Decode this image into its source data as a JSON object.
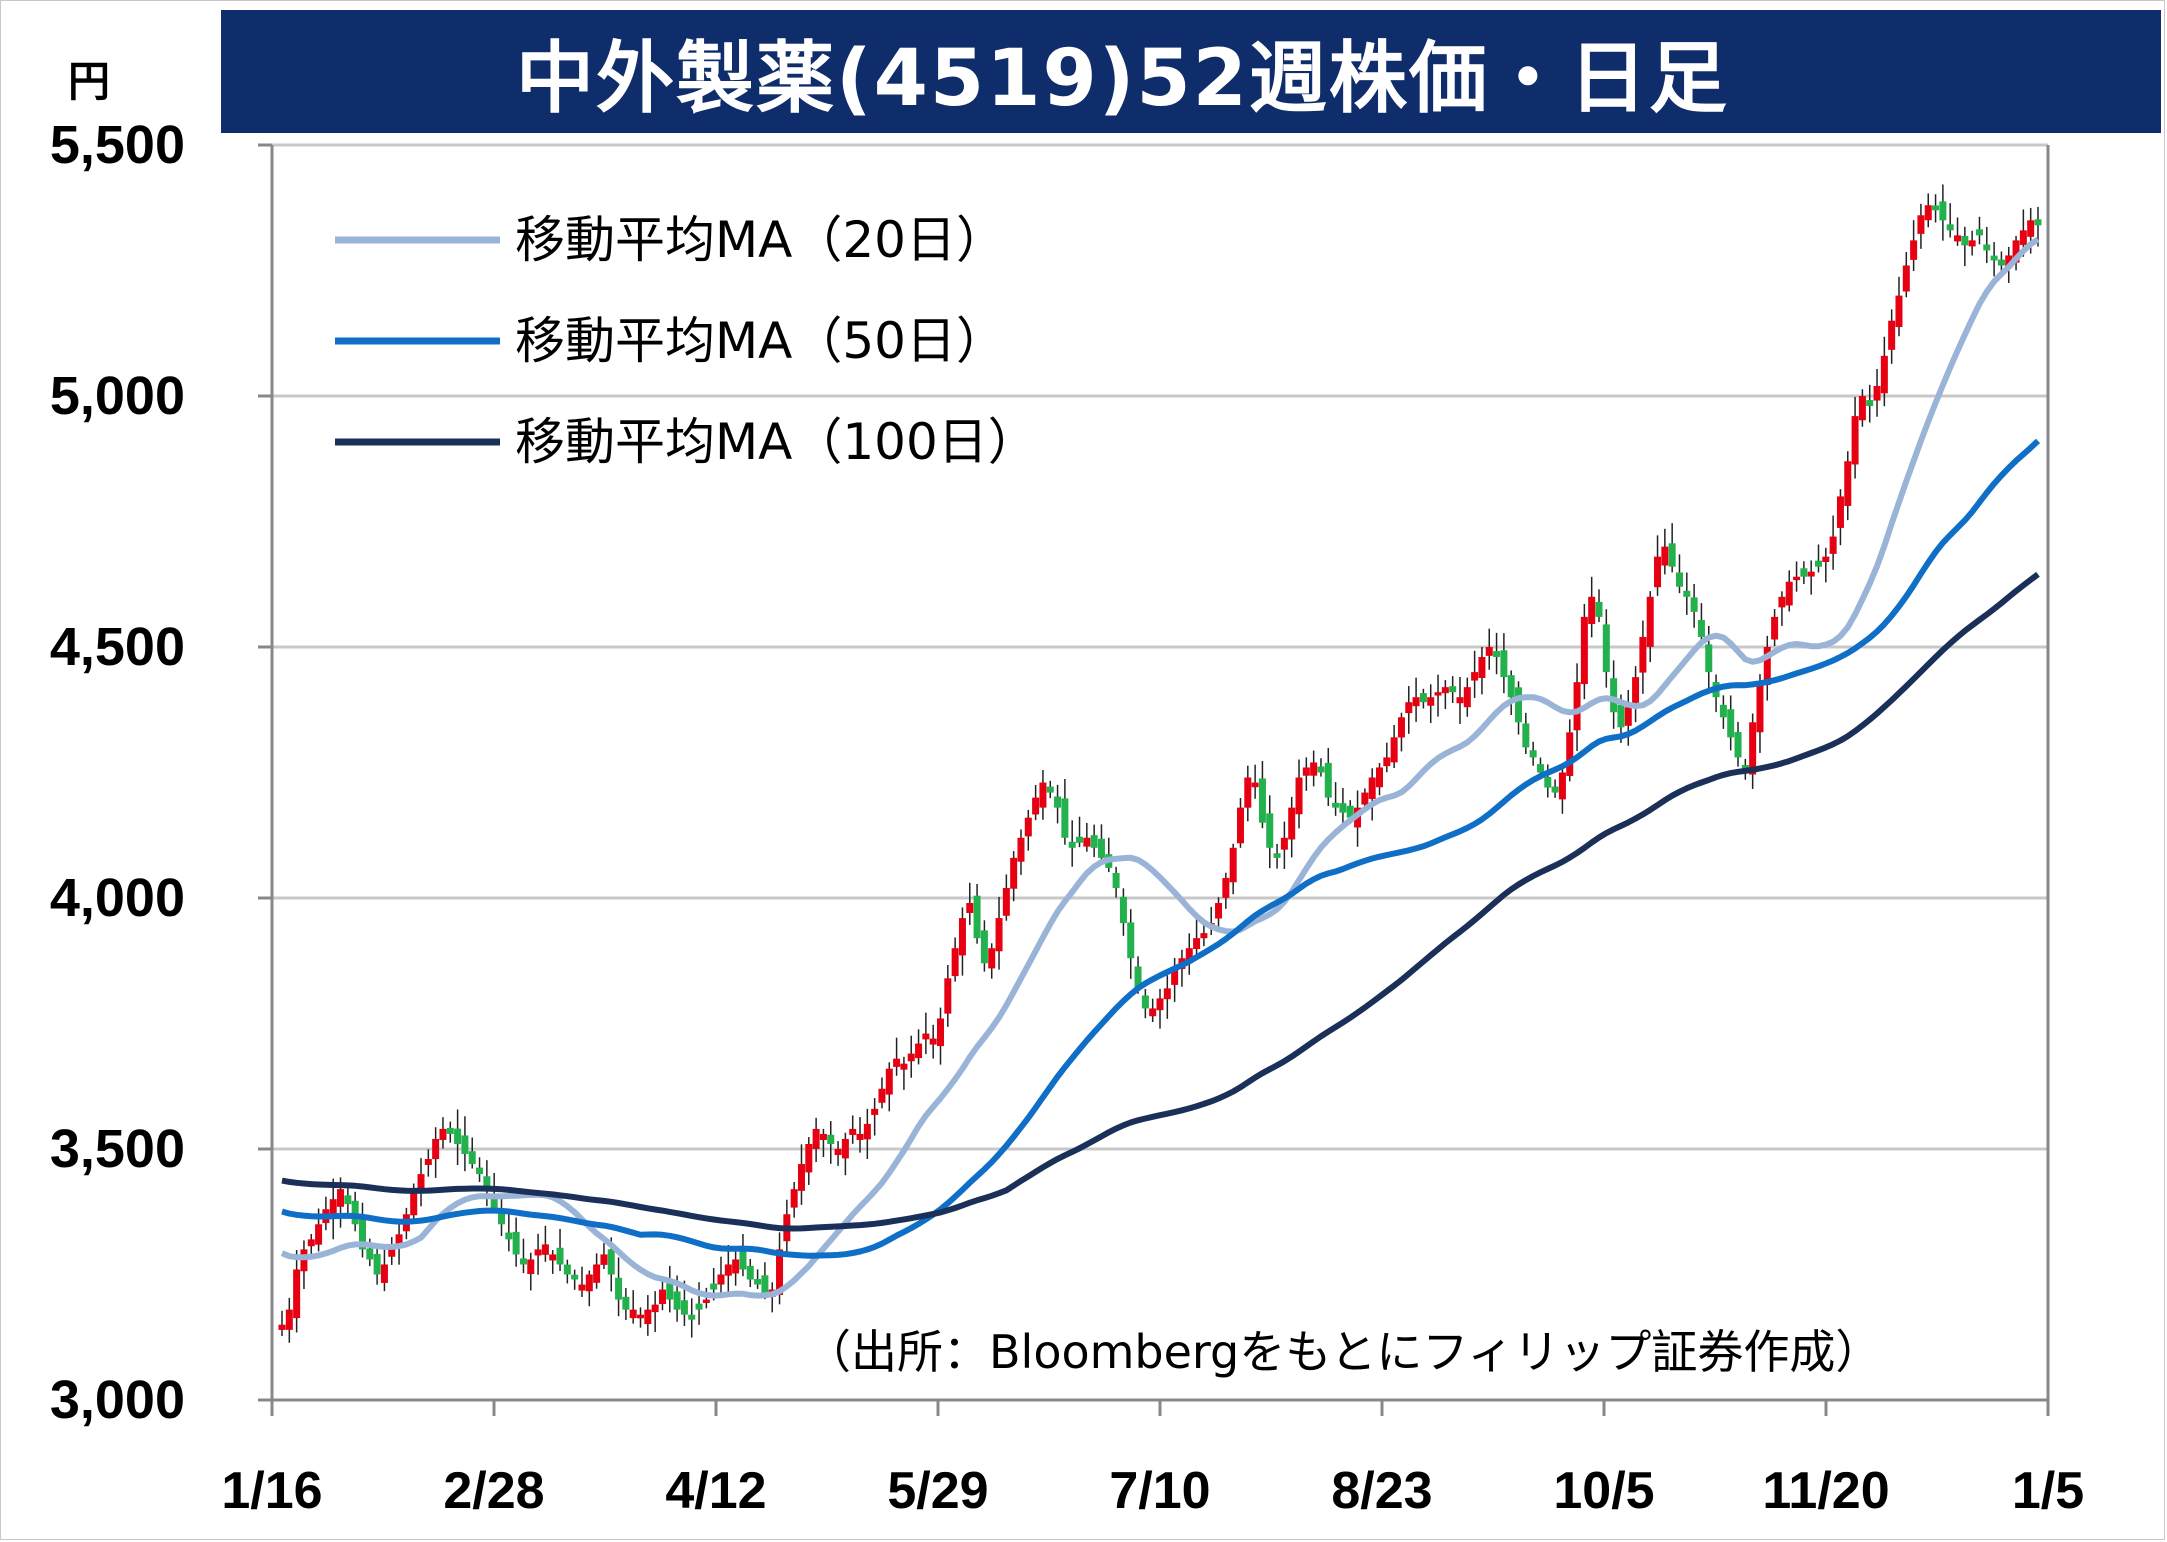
{
  "chart_data": {
    "type": "candlestick",
    "title": "中外製薬(4519)52週株価・日足",
    "ylabel": "円",
    "ylim": [
      3000,
      5500
    ],
    "yticks": [
      "3,000",
      "3,500",
      "4,000",
      "4,500",
      "5,000",
      "5,500"
    ],
    "ytick_values": [
      3000,
      3500,
      4000,
      4500,
      5000,
      5500
    ],
    "xticks": [
      "1/16",
      "2/28",
      "4/12",
      "5/29",
      "7/10",
      "8/23",
      "10/5",
      "11/20",
      "1/5"
    ],
    "grid": true,
    "legend_position": "top-left",
    "source": "（出所：Bloombergをもとにフィリップ証券作成）",
    "colors": {
      "up": "#e60012",
      "down": "#22b14c",
      "ma20": "#9ab4d8",
      "ma50": "#0f6fc6",
      "ma100": "#1a3058",
      "title_bg": "#0f2c6b",
      "grid": "#c8c8c8"
    },
    "close": [
      3150,
      3180,
      3260,
      3300,
      3320,
      3350,
      3380,
      3400,
      3420,
      3390,
      3350,
      3300,
      3280,
      3250,
      3270,
      3300,
      3330,
      3370,
      3420,
      3450,
      3480,
      3520,
      3540,
      3530,
      3510,
      3490,
      3470,
      3450,
      3420,
      3380,
      3350,
      3320,
      3290,
      3270,
      3280,
      3300,
      3310,
      3290,
      3270,
      3250,
      3240,
      3230,
      3250,
      3270,
      3290,
      3250,
      3200,
      3180,
      3180,
      3170,
      3180,
      3190,
      3220,
      3200,
      3180,
      3170,
      3160,
      3180,
      3200,
      3220,
      3250,
      3270,
      3280,
      3260,
      3240,
      3230,
      3210,
      3220,
      3300,
      3370,
      3420,
      3470,
      3510,
      3540,
      3530,
      3510,
      3500,
      3520,
      3540,
      3530,
      3550,
      3580,
      3620,
      3660,
      3680,
      3670,
      3690,
      3710,
      3730,
      3720,
      3760,
      3840,
      3900,
      3960,
      3990,
      3920,
      3870,
      3900,
      3960,
      4020,
      4080,
      4120,
      4160,
      4200,
      4230,
      4210,
      4180,
      4120,
      4100,
      4110,
      4120,
      4100,
      4080,
      4060,
      4020,
      3950,
      3880,
      3820,
      3780,
      3780,
      3800,
      3820,
      3860,
      3880,
      3900,
      3920,
      3930,
      3950,
      3990,
      4040,
      4100,
      4180,
      4240,
      4230,
      4150,
      4100,
      4080,
      4120,
      4180,
      4240,
      4260,
      4270,
      4250,
      4200,
      4180,
      4170,
      4160,
      4180,
      4210,
      4240,
      4260,
      4280,
      4320,
      4360,
      4390,
      4400,
      4390,
      4400,
      4410,
      4420,
      4410,
      4400,
      4420,
      4450,
      4480,
      4500,
      4480,
      4440,
      4400,
      4350,
      4300,
      4280,
      4250,
      4220,
      4210,
      4250,
      4330,
      4430,
      4560,
      4600,
      4560,
      4450,
      4370,
      4340,
      4380,
      4440,
      4520,
      4600,
      4680,
      4700,
      4660,
      4620,
      4600,
      4570,
      4520,
      4450,
      4400,
      4360,
      4320,
      4280,
      4250,
      4350,
      4430,
      4500,
      4560,
      4600,
      4630,
      4640,
      4640,
      4650,
      4660,
      4680,
      4720,
      4800,
      4870,
      4960,
      5000,
      4980,
      5020,
      5080,
      5150,
      5200,
      5260,
      5310,
      5360,
      5380,
      5370,
      5350,
      5330,
      5320,
      5300,
      5310,
      5320,
      5290,
      5270,
      5260,
      5280,
      5310,
      5330,
      5350,
      5340
    ],
    "ma_legend": [
      "移動平均MA（20日）",
      "移動平均MA（50日）",
      "移動平均MA（100日）"
    ]
  }
}
